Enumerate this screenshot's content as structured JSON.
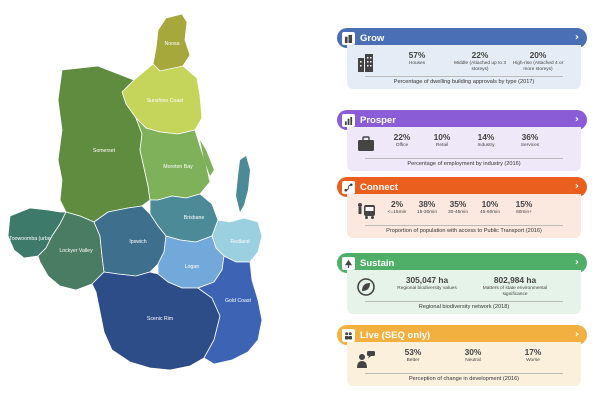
{
  "map": {
    "regions": [
      {
        "key": "noosa",
        "label": "Noosa",
        "color": "#a6a83c"
      },
      {
        "key": "sunshine",
        "label": "Sunshine Coast",
        "color": "#c5d45a"
      },
      {
        "key": "somerset",
        "label": "Somerset",
        "color": "#5f8c3f"
      },
      {
        "key": "moreton",
        "label": "Moreton Bay",
        "color": "#7fb15a"
      },
      {
        "key": "toowoomba",
        "label": "Toowoomba (urban extent)",
        "color": "#3e7a6a"
      },
      {
        "key": "lockyer",
        "label": "Lockyer Valley",
        "color": "#4a7c63"
      },
      {
        "key": "brisbane",
        "label": "Brisbane",
        "color": "#4b8a96"
      },
      {
        "key": "ipswich",
        "label": "Ipswich",
        "color": "#3e6f8c"
      },
      {
        "key": "redland",
        "label": "Redland",
        "color": "#9ad0e0"
      },
      {
        "key": "logan",
        "label": "Logan",
        "color": "#72a9da"
      },
      {
        "key": "scenic",
        "label": "Scenic Rim",
        "color": "#2d4d88"
      },
      {
        "key": "goldcoast",
        "label": "Gold Coast",
        "color": "#3d63b4"
      }
    ]
  },
  "panels": [
    {
      "key": "grow",
      "title": "Grow",
      "icon": "buildings-icon",
      "header_color": "#4a6fb4",
      "body_color": "#e6ecf6",
      "stats": [
        {
          "value": "57%",
          "label": "Houses"
        },
        {
          "value": "22%",
          "label": "Middle (Attached up to 3 storeys)"
        },
        {
          "value": "20%",
          "label": "High-rise (Attached 4 or more storeys)"
        }
      ],
      "caption": "Percentage of dwelling building approvals by type (2017)"
    },
    {
      "key": "prosper",
      "title": "Prosper",
      "icon": "bar-chart-icon",
      "header_color": "#8a5cd6",
      "body_color": "#efe8f8",
      "stats": [
        {
          "value": "22%",
          "label": "Office"
        },
        {
          "value": "10%",
          "label": "Retail"
        },
        {
          "value": "14%",
          "label": "Industry"
        },
        {
          "value": "36%",
          "label": "Services"
        }
      ],
      "caption": "Percentage of employment by industry (2016)"
    },
    {
      "key": "connect",
      "title": "Connect",
      "icon": "route-icon",
      "header_color": "#ea5f1e",
      "body_color": "#fbe9e0",
      "stats": [
        {
          "value": "2%",
          "label": "<=15min"
        },
        {
          "value": "38%",
          "label": "15-30min"
        },
        {
          "value": "35%",
          "label": "30-45min"
        },
        {
          "value": "10%",
          "label": "45-60min"
        },
        {
          "value": "15%",
          "label": "60min+"
        }
      ],
      "caption": "Proportion of population with access to Public Transport (2016)"
    },
    {
      "key": "sustain",
      "title": "Sustain",
      "icon": "tree-icon",
      "header_color": "#4fae68",
      "body_color": "#e6f3e8",
      "stats": [
        {
          "value": "305,047 ha",
          "label": "Regional biodiversity values"
        },
        {
          "value": "802,984 ha",
          "label": "Matters of state environmental significance"
        }
      ],
      "caption": "Regional biodiversity network (2018)"
    },
    {
      "key": "live",
      "title": "Live (SEQ only)",
      "icon": "people-icon",
      "header_color": "#f1b03f",
      "body_color": "#fbf0dc",
      "stats": [
        {
          "value": "53%",
          "label": "Better"
        },
        {
          "value": "30%",
          "label": "Neutral"
        },
        {
          "value": "17%",
          "label": "Worse"
        }
      ],
      "caption": "Perception of change in development (2016)"
    }
  ]
}
